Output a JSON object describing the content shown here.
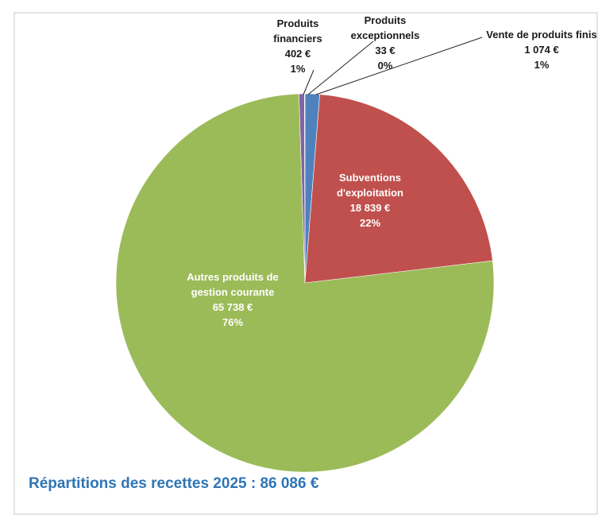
{
  "chart_data": {
    "type": "pie",
    "title": "Répartitions des recettes 2025 : 86 086 €",
    "categories": [
      "Vente de produits finis",
      "Subventions d'exploitation",
      "Autres produits de gestion courante",
      "Produits financiers",
      "Produits exceptionnels"
    ],
    "values": [
      1074,
      18839,
      65738,
      402,
      33
    ],
    "value_labels": [
      "1 074 €",
      "18 839 €",
      "65 738 €",
      "402 €",
      "33 €"
    ],
    "percent_labels": [
      "1%",
      "22%",
      "76%",
      "1%",
      "0%"
    ],
    "colors": [
      "#4f81bd",
      "#c0504d",
      "#9bbb59",
      "#8064a2",
      "#4bacc6"
    ]
  }
}
